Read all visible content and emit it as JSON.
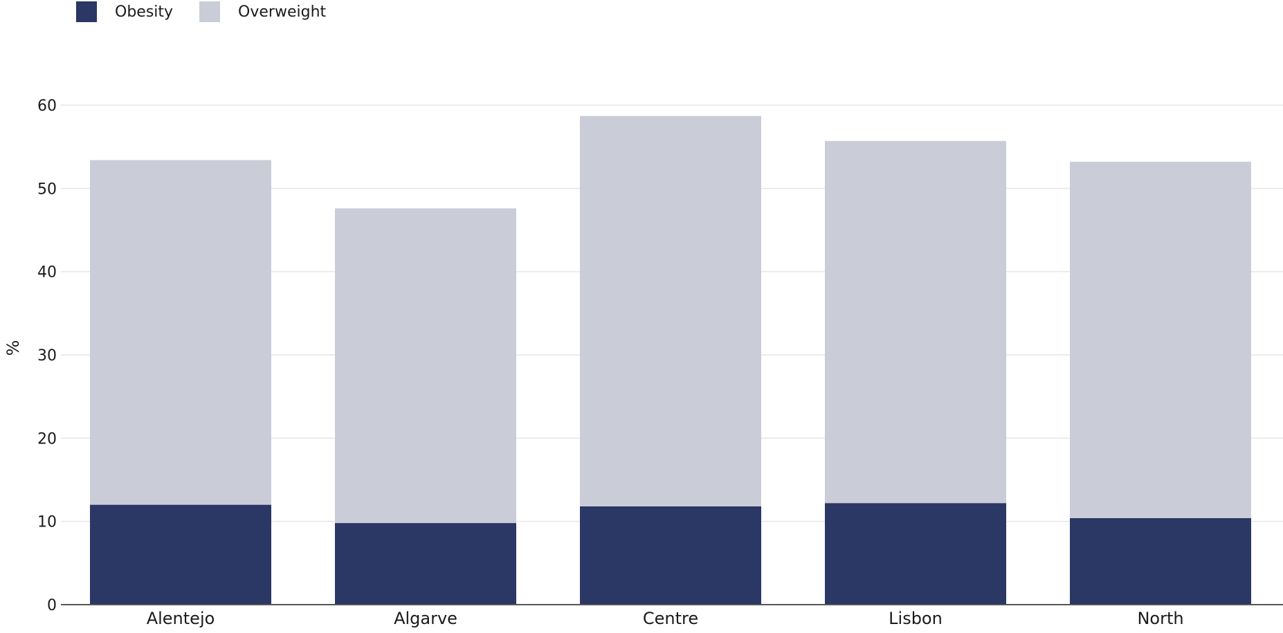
{
  "chart_data": {
    "type": "bar",
    "stacked": true,
    "categories": [
      "Alentejo",
      "Algarve",
      "Centre",
      "Lisbon",
      "North"
    ],
    "series": [
      {
        "name": "Obesity",
        "color": "#2b3764",
        "values": [
          12.0,
          9.8,
          11.8,
          12.2,
          10.4
        ]
      },
      {
        "name": "Overweight",
        "color": "#cacdd8",
        "values": [
          41.4,
          37.8,
          46.9,
          43.5,
          42.8
        ]
      }
    ],
    "title": "",
    "xlabel": "",
    "ylabel": "%",
    "ylim": [
      0,
      60
    ],
    "yticks": [
      0,
      10,
      20,
      30,
      40,
      50,
      60
    ],
    "grid": true,
    "legend_position": "top-left",
    "gridline_color": "#e6e6e6",
    "axis_color": "#555555"
  }
}
